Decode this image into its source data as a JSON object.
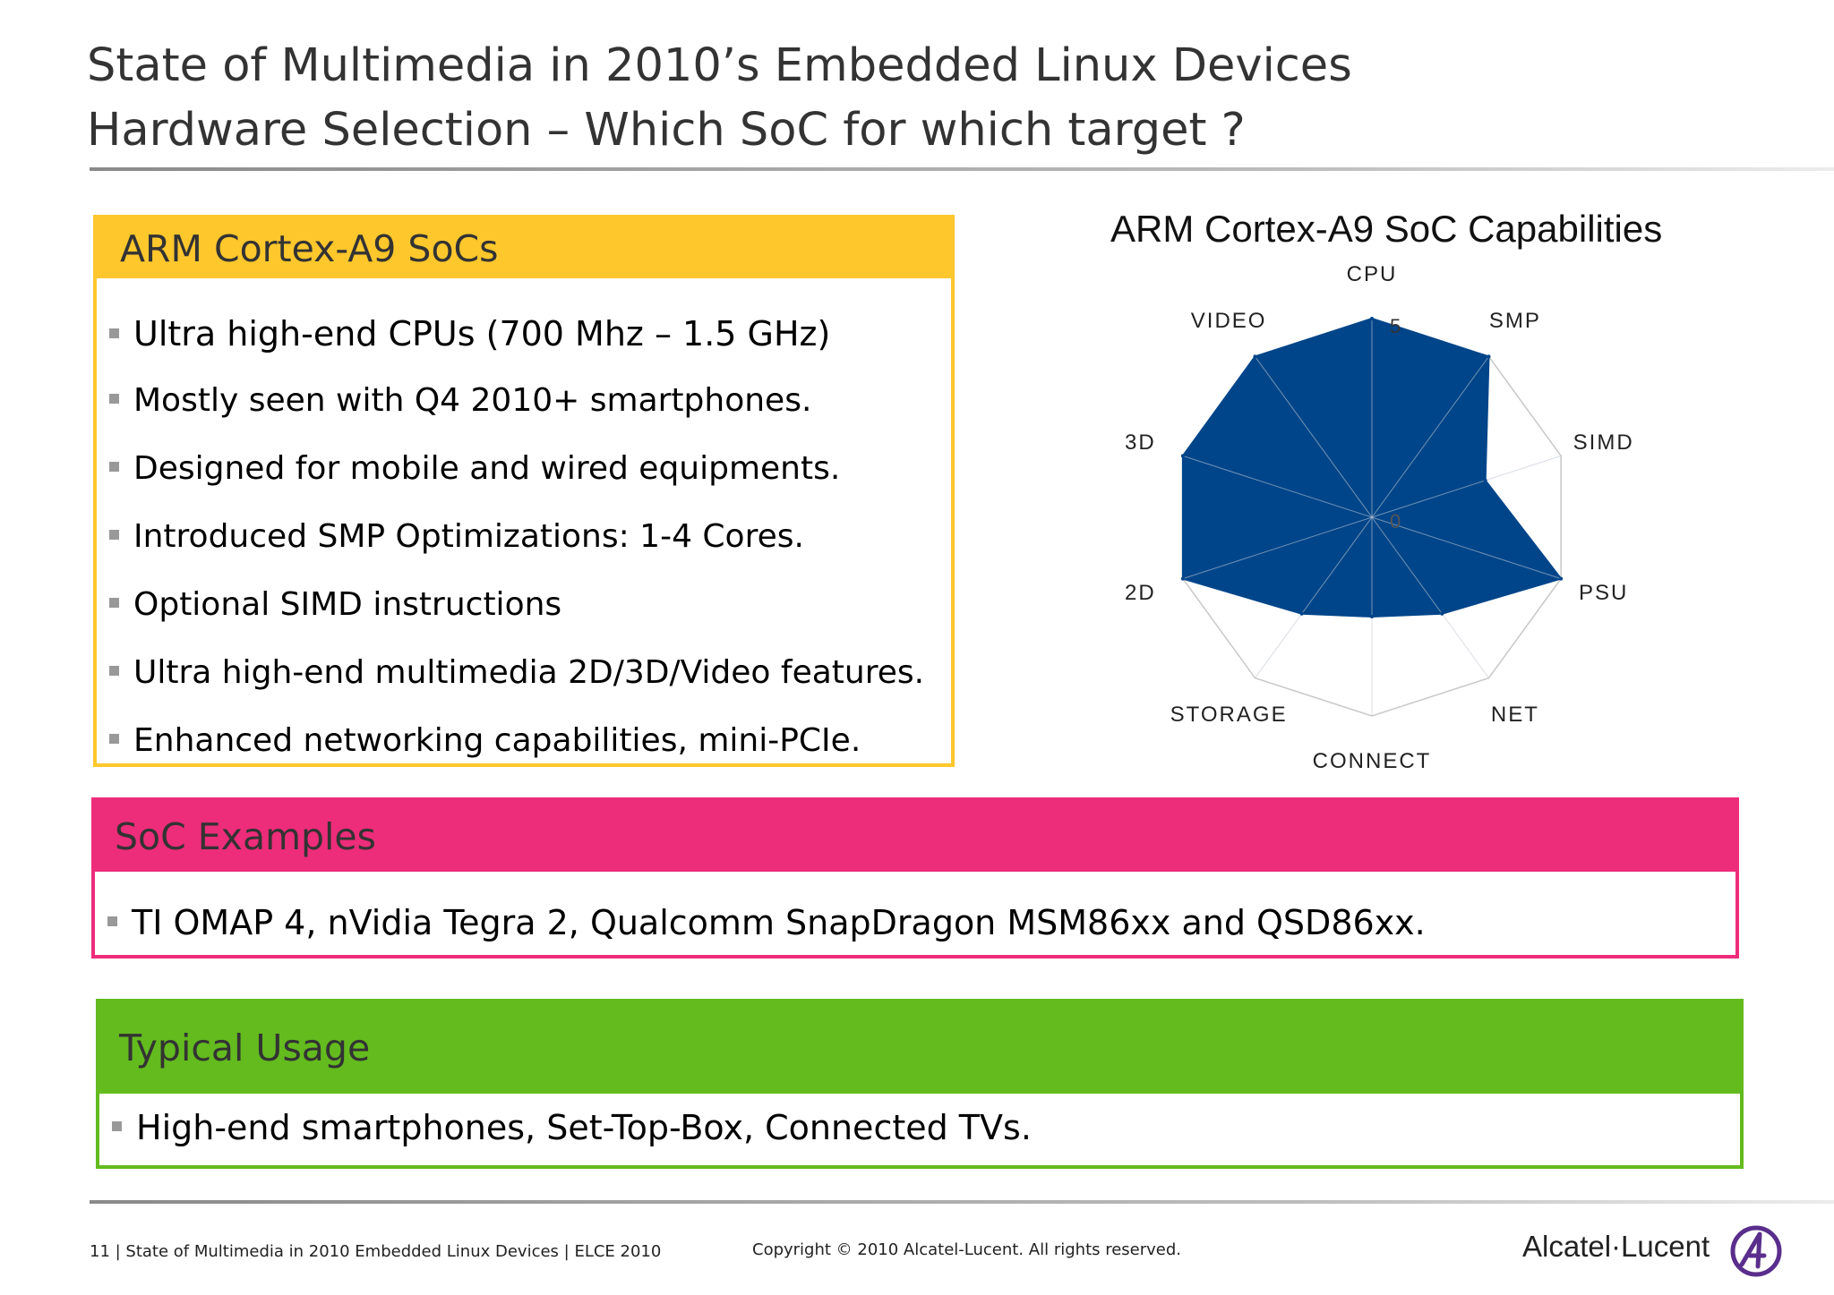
{
  "header": {
    "title_line1": "State of Multimedia in 2010’s Embedded Linux Devices",
    "title_line2": "Hardware Selection – Which SoC for which target ?"
  },
  "arm_box": {
    "title": "ARM Cortex-A9 SoCs",
    "bullets": [
      "Ultra high-end CPUs (700 Mhz – 1.5 GHz)",
      "Mostly seen with Q4 2010+ smartphones.",
      "Designed for mobile and wired equipments.",
      "Introduced SMP Optimizations: 1-4 Cores.",
      "Optional SIMD instructions",
      "Ultra high-end multimedia 2D/3D/Video features.",
      "Enhanced networking capabilities, mini-PCIe."
    ],
    "color": "#FEC72C"
  },
  "soc_box": {
    "title": "SoC Examples",
    "bullets": [
      "TI OMAP 4, nVidia Tegra 2, Qualcomm SnapDragon MSM86xx and QSD86xx."
    ],
    "color": "#ED2C7A"
  },
  "usage_box": {
    "title": "Typical Usage",
    "bullets": [
      "High-end smartphones, Set-Top-Box, Connected TVs."
    ],
    "color": "#63BB1E"
  },
  "chart_data": {
    "type": "radar",
    "title": "ARM Cortex-A9 SoC Capabilities",
    "categories": [
      "CPU",
      "SMP",
      "SIMD",
      "PSU",
      "NET",
      "CONNECT",
      "STORAGE",
      "2D",
      "3D",
      "VIDEO"
    ],
    "values": [
      5,
      5,
      3,
      5,
      3,
      2.5,
      3,
      5,
      5,
      5
    ],
    "rlim": [
      0,
      5
    ],
    "tick_labels": [
      "0",
      "5"
    ],
    "fill_color": "#00458A",
    "grid": true
  },
  "footer": {
    "left": "11 | State of Multimedia in 2010 Embedded Linux Devices | ELCE 2010",
    "center": "Copyright © 2010 Alcatel-Lucent. All rights reserved.",
    "logo_text": "Alcatel·Lucent",
    "logo_icon": "alcatel-lucent-logo-icon",
    "logo_color": "#5A2E8C"
  }
}
